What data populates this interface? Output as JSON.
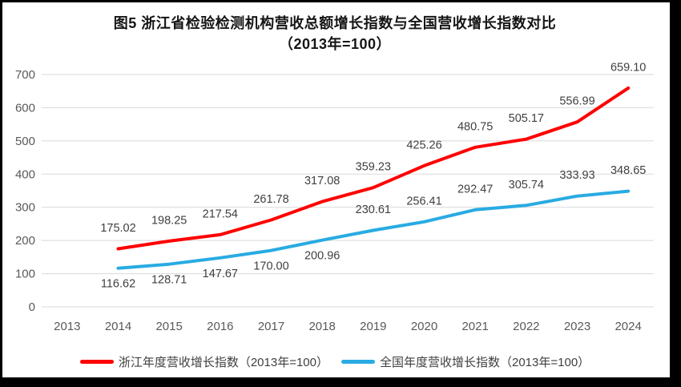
{
  "title": {
    "line1": "图5  浙江省检验检测机构营收总额增长指数与全国营收增长指数对比",
    "line2": "（2013年=100）"
  },
  "chart_data": {
    "type": "line",
    "title": "图5 浙江省检验检测机构营收总额增长指数与全国营收增长指数对比（2013年=100）",
    "categories": [
      "2013",
      "2014",
      "2015",
      "2016",
      "2017",
      "2018",
      "2019",
      "2020",
      "2021",
      "2022",
      "2023",
      "2024"
    ],
    "ylim": [
      0,
      700
    ],
    "ytick_step": 100,
    "grid": true,
    "legend_position": "bottom",
    "gridline_color": "#d9d9d9",
    "axis_label_color": "#595959",
    "data_label_color": "#3f3f3f",
    "series": [
      {
        "name": "浙江年度营收增长指数（2013年=100）",
        "color": "#fe0000",
        "values": [
          null,
          175.02,
          198.25,
          217.54,
          261.78,
          317.08,
          359.23,
          425.26,
          480.75,
          505.17,
          556.99,
          659.1
        ],
        "label_positions": [
          "above",
          "above",
          "above",
          "above",
          "above",
          "above",
          "above",
          "above",
          "above",
          "above",
          "above",
          "above"
        ]
      },
      {
        "name": "全国年度营收增长指数（2013年=100）",
        "color": "#29abe2",
        "values": [
          null,
          116.62,
          128.71,
          147.67,
          170.0,
          200.96,
          230.61,
          256.41,
          292.47,
          305.74,
          333.93,
          348.65
        ],
        "label_positions": [
          "above",
          "below",
          "below",
          "below",
          "below",
          "below",
          "above",
          "above",
          "above",
          "above",
          "above",
          "above"
        ]
      }
    ]
  }
}
